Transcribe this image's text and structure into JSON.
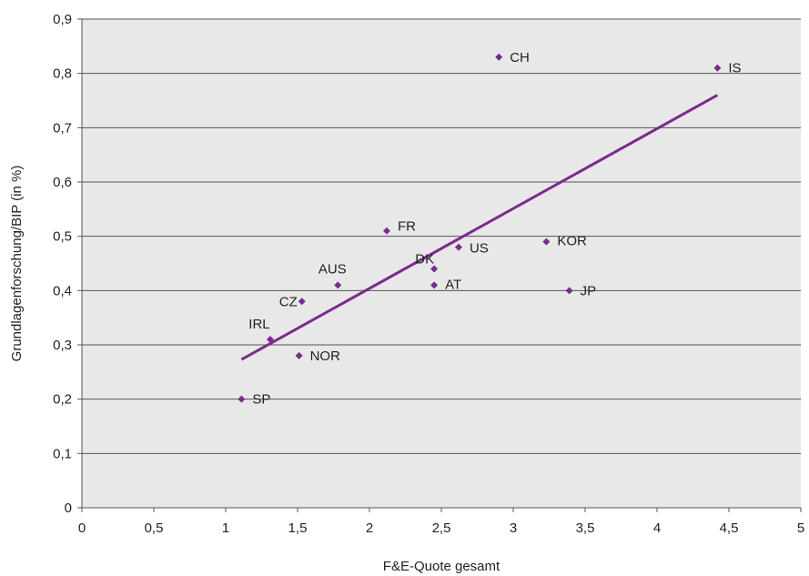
{
  "chart_data": {
    "type": "scatter",
    "title": "",
    "xlabel": "F&E-Quote gesamt",
    "ylabel": "Grundlagenforschung/BIP (in %)",
    "xlim": [
      0,
      5
    ],
    "ylim": [
      0,
      0.9
    ],
    "x_ticks": [
      "0",
      "0,5",
      "1",
      "1,5",
      "2",
      "2,5",
      "3",
      "3,5",
      "4",
      "4,5",
      "5"
    ],
    "y_ticks": [
      "0",
      "0,1",
      "0,2",
      "0,3",
      "0,4",
      "0,5",
      "0,6",
      "0,7",
      "0,8",
      "0,9"
    ],
    "grid": "horizontal",
    "points": [
      {
        "label": "CH",
        "x": 2.9,
        "y": 0.83
      },
      {
        "label": "IS",
        "x": 4.42,
        "y": 0.81
      },
      {
        "label": "FR",
        "x": 2.12,
        "y": 0.51
      },
      {
        "label": "US",
        "x": 2.62,
        "y": 0.48
      },
      {
        "label": "KOR",
        "x": 3.23,
        "y": 0.49
      },
      {
        "label": "DK",
        "x": 2.45,
        "y": 0.44
      },
      {
        "label": "AUS",
        "x": 1.78,
        "y": 0.41
      },
      {
        "label": "AT",
        "x": 2.45,
        "y": 0.41
      },
      {
        "label": "JP",
        "x": 3.39,
        "y": 0.4
      },
      {
        "label": "CZ",
        "x": 1.53,
        "y": 0.38
      },
      {
        "label": "IRL",
        "x": 1.31,
        "y": 0.31
      },
      {
        "label": "NOR",
        "x": 1.51,
        "y": 0.28
      },
      {
        "label": "SP",
        "x": 1.11,
        "y": 0.2
      }
    ],
    "trendline": {
      "x": [
        1.11,
        4.42
      ],
      "y": [
        0.273,
        0.76
      ]
    },
    "colors": {
      "marker": "#7b2a8c",
      "trendline": "#7b2a8c",
      "plot_background": "#e8e8e8",
      "gridline": "#555555"
    }
  }
}
